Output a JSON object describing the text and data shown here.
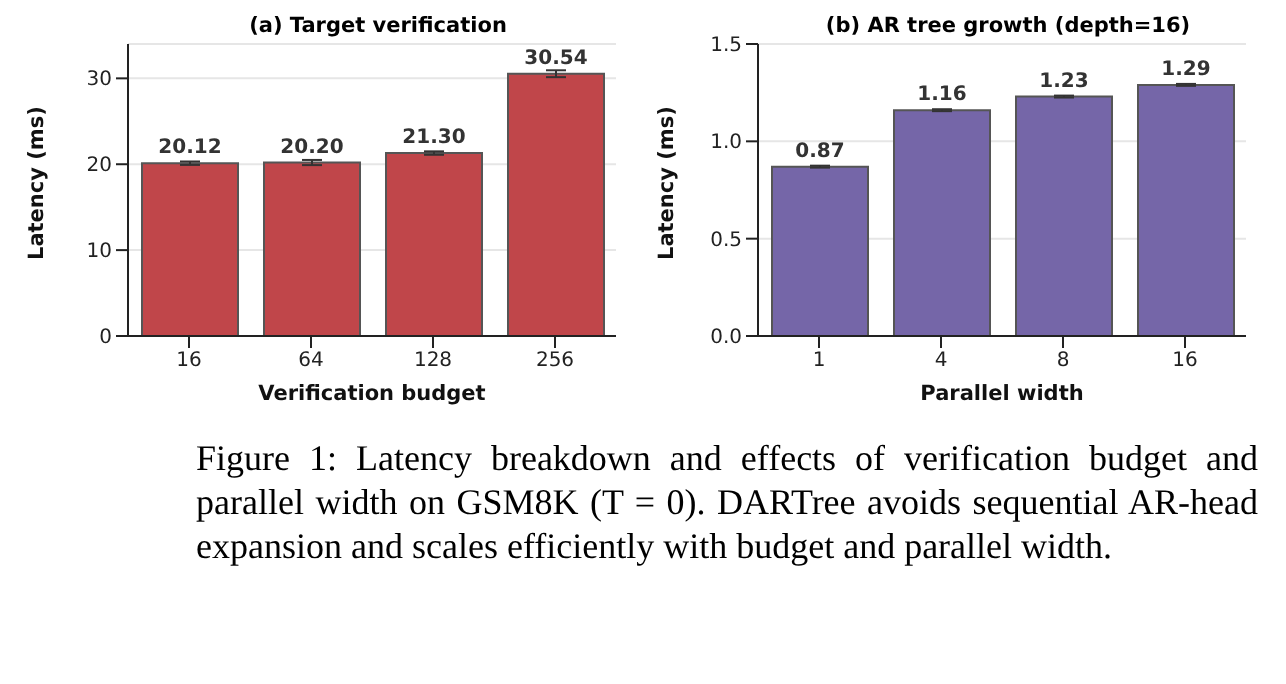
{
  "chart_data": [
    {
      "type": "bar",
      "title": "(a) Target verification",
      "xlabel": "Verification budget",
      "ylabel": "Latency (ms)",
      "categories": [
        "16",
        "64",
        "128",
        "256"
      ],
      "values": [
        20.12,
        20.2,
        21.3,
        30.54
      ],
      "value_labels": [
        "20.12",
        "20.20",
        "21.30",
        "30.54"
      ],
      "errors": [
        0.2,
        0.3,
        0.2,
        0.4
      ],
      "color": "#c0464a",
      "ylim": [
        0,
        34
      ],
      "yticks": [
        0,
        10,
        20,
        30
      ],
      "grid": "y",
      "annotations": [
        "Figure 1: Latency breakdown and effects of verification budget and parallel width on GSM8K (T = 0). DARTree avoids sequential AR-head expansion and scales efficiently with budget and parallel width."
      ]
    },
    {
      "type": "bar",
      "title": "(b) AR tree growth (depth=16)",
      "xlabel": "Parallel width",
      "ylabel": "Latency (ms)",
      "categories": [
        "1",
        "4",
        "8",
        "16"
      ],
      "values": [
        0.87,
        1.16,
        1.23,
        1.29
      ],
      "value_labels": [
        "0.87",
        "1.16",
        "1.23",
        "1.29"
      ],
      "errors": [
        0.005,
        0.005,
        0.005,
        0.005
      ],
      "color": "#7566a8",
      "ylim": [
        0,
        1.5
      ],
      "yticks": [
        {
          "value": 0,
          "label": "0.0"
        },
        0.5,
        {
          "value": 1,
          "label": "1.0"
        },
        1.5
      ],
      "grid": "y"
    }
  ]
}
